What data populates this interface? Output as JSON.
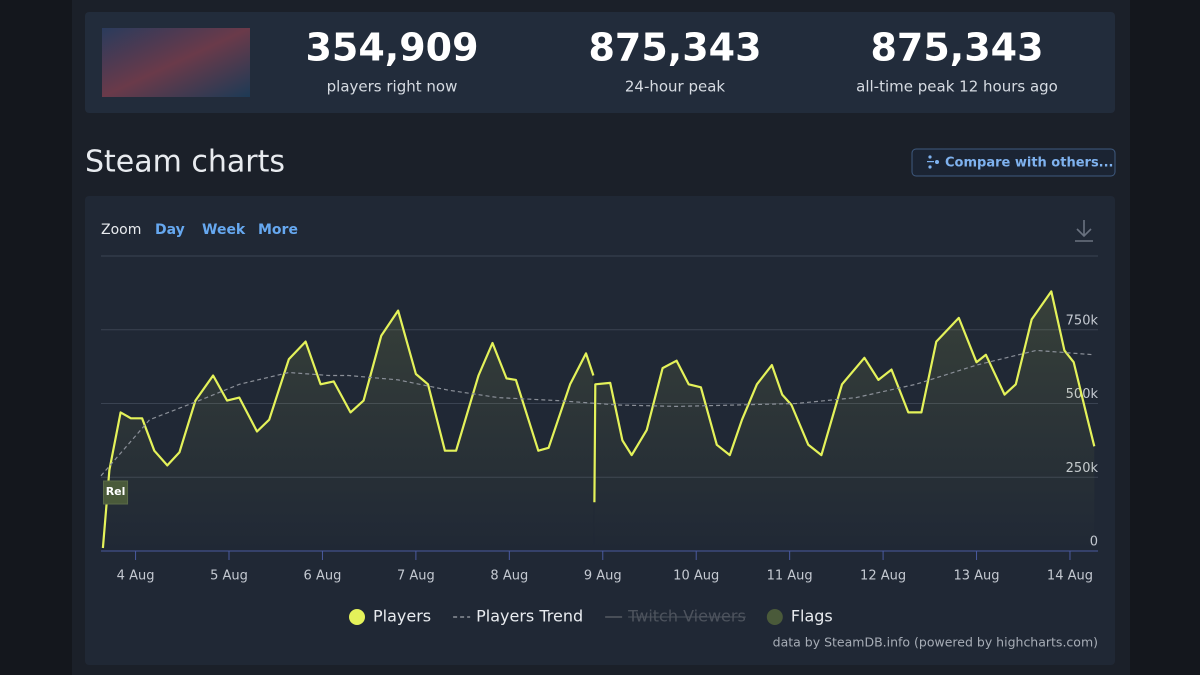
{
  "stats": [
    {
      "value": "354,909",
      "label": "players right now"
    },
    {
      "value": "875,343",
      "label": "24-hour peak"
    },
    {
      "value": "875,343",
      "label": "all-time peak 12 hours ago"
    }
  ],
  "section_title": "Steam charts",
  "compare_button": "Compare with others...",
  "zoom": {
    "label": "Zoom",
    "options": [
      "Day",
      "Week",
      "More"
    ]
  },
  "chart_data": {
    "type": "line",
    "xlim": [
      3.63,
      14.3
    ],
    "xticks": [
      {
        "value": 4,
        "label": "4 Aug"
      },
      {
        "value": 5,
        "label": "5 Aug"
      },
      {
        "value": 6,
        "label": "6 Aug"
      },
      {
        "value": 7,
        "label": "7 Aug"
      },
      {
        "value": 8,
        "label": "8 Aug"
      },
      {
        "value": 9,
        "label": "9 Aug"
      },
      {
        "value": 10,
        "label": "10 Aug"
      },
      {
        "value": 11,
        "label": "11 Aug"
      },
      {
        "value": 12,
        "label": "12 Aug"
      },
      {
        "value": 13,
        "label": "13 Aug"
      },
      {
        "value": 14,
        "label": "14 Aug"
      }
    ],
    "ylim": [
      0,
      1000000
    ],
    "yticks": [
      {
        "value": 0,
        "label": "0"
      },
      {
        "value": 250000,
        "label": "250k"
      },
      {
        "value": 500000,
        "label": "500k"
      },
      {
        "value": 750000,
        "label": "750k"
      }
    ],
    "grid": true,
    "series": [
      {
        "name": "Players",
        "color": "#e4f25a",
        "x": [
          3.65,
          3.72,
          3.84,
          3.95,
          4.07,
          4.2,
          4.34,
          4.47,
          4.64,
          4.83,
          4.98,
          5.11,
          5.3,
          5.43,
          5.64,
          5.82,
          5.98,
          6.12,
          6.3,
          6.44,
          6.63,
          6.81,
          7.0,
          7.13,
          7.31,
          7.43,
          7.67,
          7.82,
          7.97,
          8.07,
          8.31,
          8.42,
          8.65,
          8.82,
          8.9,
          8.905,
          8.91,
          8.92,
          9.08,
          9.21,
          9.31,
          9.47,
          9.64,
          9.79,
          9.92,
          10.05,
          10.22,
          10.36,
          10.49,
          10.65,
          10.81,
          10.92,
          11.02,
          11.2,
          11.34,
          11.56,
          11.8,
          11.95,
          12.09,
          12.27,
          12.41,
          12.57,
          12.81,
          13.0,
          13.1,
          13.3,
          13.42,
          13.59,
          13.8,
          13.94,
          14.04,
          14.19,
          14.26
        ],
        "values": [
          10000,
          275000,
          470000,
          450000,
          450000,
          340000,
          290000,
          335000,
          510000,
          595000,
          510000,
          520000,
          405000,
          445000,
          650000,
          710000,
          565000,
          575000,
          470000,
          510000,
          730000,
          815000,
          600000,
          565000,
          340000,
          340000,
          595000,
          705000,
          585000,
          580000,
          340000,
          350000,
          565000,
          670000,
          595000,
          null,
          165000,
          565000,
          570000,
          375000,
          325000,
          410000,
          620000,
          645000,
          565000,
          555000,
          360000,
          325000,
          445000,
          565000,
          630000,
          530000,
          495000,
          360000,
          325000,
          565000,
          655000,
          580000,
          615000,
          470000,
          470000,
          710000,
          790000,
          640000,
          665000,
          530000,
          565000,
          785000,
          880000,
          680000,
          640000,
          445000,
          355000
        ]
      },
      {
        "name": "Players Trend",
        "color": "#8a8f98",
        "x": [
          3.63,
          4.15,
          4.68,
          5.11,
          5.64,
          6.07,
          6.28,
          6.81,
          7.35,
          7.88,
          8.52,
          9.16,
          9.79,
          10.43,
          11.07,
          11.71,
          12.35,
          13.0,
          13.64,
          14.26
        ],
        "values": [
          255000,
          445000,
          510000,
          565000,
          605000,
          595000,
          595000,
          580000,
          545000,
          520000,
          510000,
          495000,
          490000,
          495000,
          500000,
          520000,
          565000,
          630000,
          680000,
          665000
        ]
      },
      {
        "name": "Twitch Viewers",
        "color": "#555a63",
        "hidden": true,
        "x": [],
        "values": []
      }
    ],
    "flags": {
      "name": "Flags",
      "color": "#4a5a3a",
      "items": [
        {
          "x": 3.7,
          "label": "Rel"
        }
      ]
    },
    "credit": "data by SteamDB.info (powered by highcharts.com)"
  }
}
